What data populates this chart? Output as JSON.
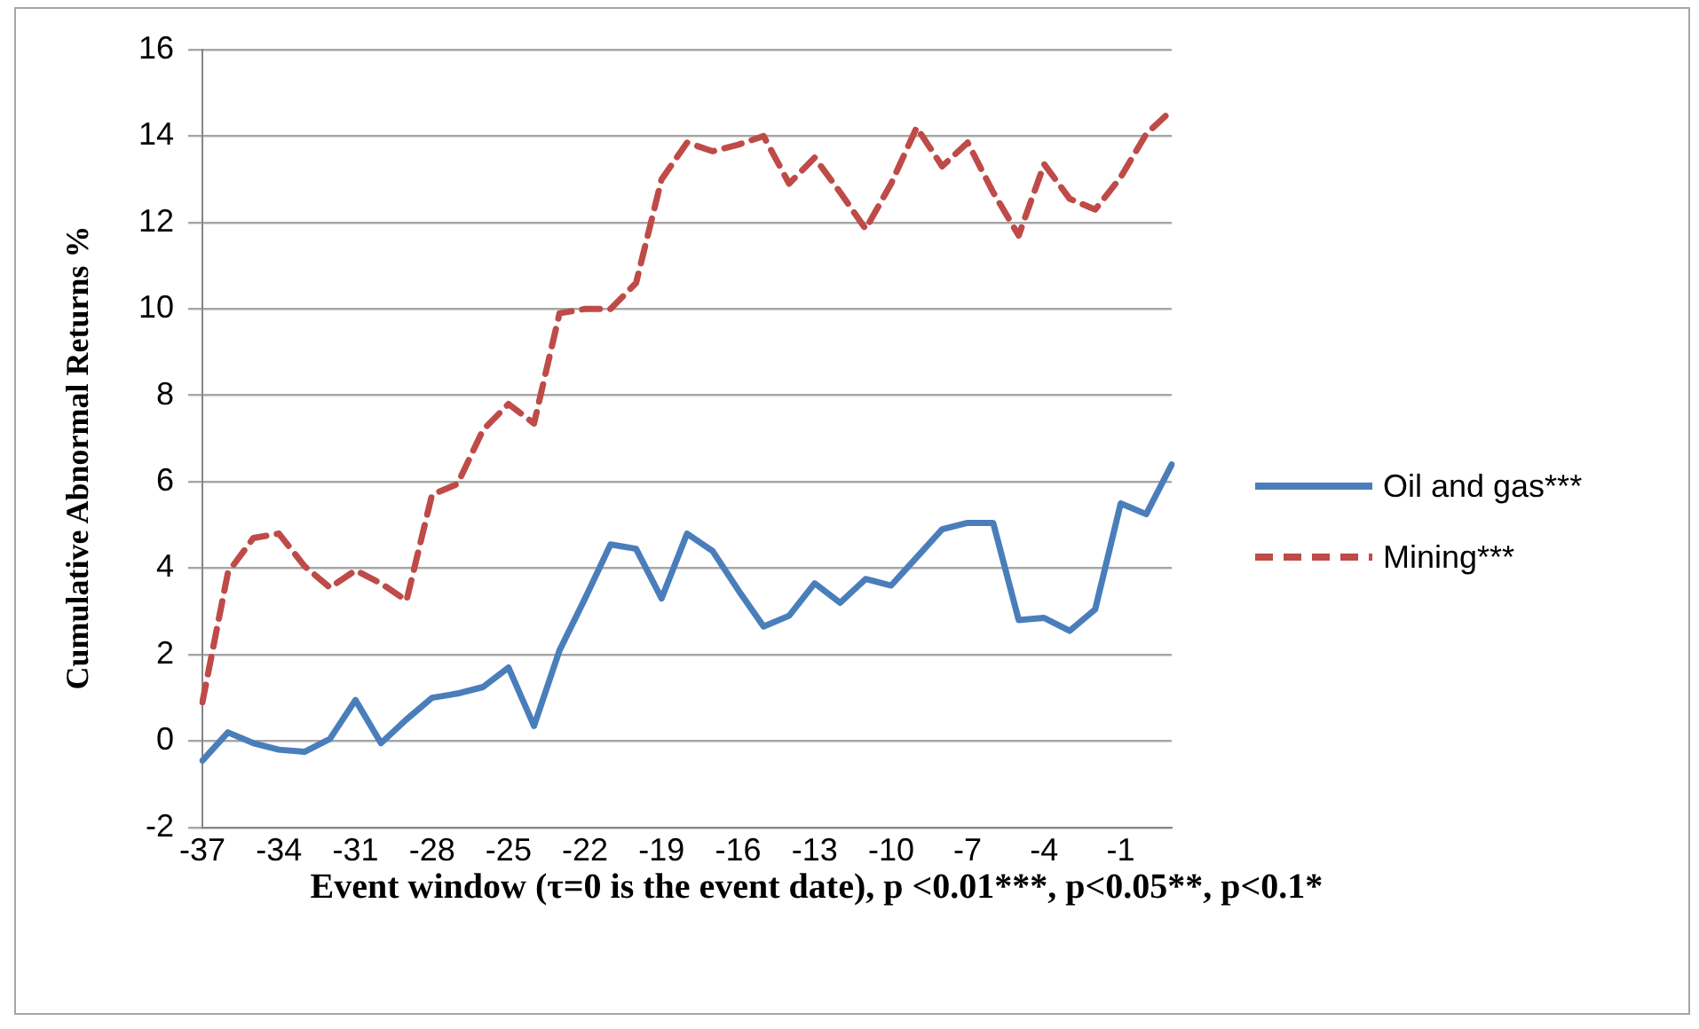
{
  "chart_data": {
    "type": "line",
    "ylabel": "Cumulative Abnormal Returns %",
    "xlabel": "Event window (τ=0 is the event date), p <0.01***, p<0.05**, p<0.1*",
    "categories": [
      "-37",
      null,
      null,
      "-34",
      null,
      null,
      "-31",
      null,
      null,
      "-28",
      null,
      null,
      "-25",
      null,
      null,
      "-22",
      null,
      null,
      "-19",
      null,
      null,
      "-16",
      null,
      null,
      "-13",
      null,
      null,
      "-10",
      null,
      null,
      "-7",
      null,
      null,
      "-4",
      null,
      null,
      "-1",
      null,
      null
    ],
    "series": [
      {
        "name": "Oil and gas***",
        "color": "#4a7ebb",
        "line_style": "solid",
        "values": [
          -0.45,
          0.2,
          -0.05,
          -0.2,
          -0.25,
          0.05,
          0.95,
          -0.05,
          0.5,
          1.0,
          1.1,
          1.25,
          1.7,
          0.35,
          2.1,
          3.3,
          4.55,
          4.45,
          3.3,
          4.8,
          4.4,
          3.5,
          2.65,
          2.9,
          3.65,
          3.2,
          3.75,
          3.6,
          4.25,
          4.9,
          5.05,
          5.05,
          2.8,
          2.85,
          2.55,
          3.05,
          5.5,
          5.25,
          6.4
        ]
      },
      {
        "name": "Mining***",
        "color": "#be4b48",
        "line_style": "dashed",
        "values": [
          0.9,
          3.9,
          4.7,
          4.8,
          4.05,
          3.55,
          3.95,
          3.65,
          3.25,
          5.7,
          5.95,
          7.2,
          7.8,
          7.35,
          9.9,
          10.0,
          10.0,
          10.6,
          13.0,
          13.85,
          13.65,
          13.8,
          14.0,
          12.9,
          13.5,
          12.7,
          11.85,
          12.9,
          14.2,
          13.3,
          13.85,
          12.7,
          11.7,
          13.35,
          12.55,
          12.3,
          13.05,
          14.05,
          14.6
        ]
      }
    ],
    "ylim": [
      -2,
      16
    ],
    "yticks": [
      -2,
      0,
      2,
      4,
      6,
      8,
      10,
      12,
      14,
      16
    ],
    "grid": "y",
    "legend": "right",
    "marker": "none"
  }
}
